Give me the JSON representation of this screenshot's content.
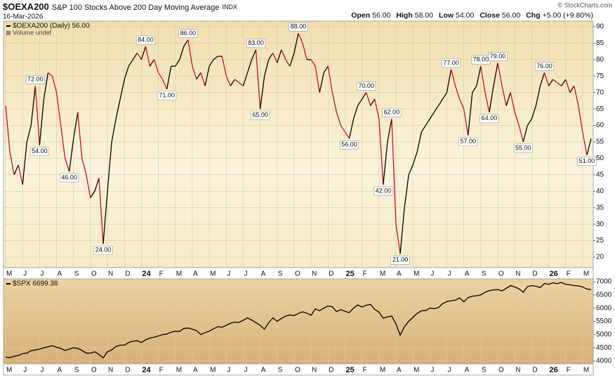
{
  "header": {
    "symbol": "$OEXA200",
    "title": "S&P 100 Stocks Above 200 Day Moving Average",
    "exchange": "INDX",
    "date": "16-Mar-2026",
    "quote": [
      {
        "label": "Open",
        "value": "56.00"
      },
      {
        "label": "High",
        "value": "58.00"
      },
      {
        "label": "Low",
        "value": "54.00"
      },
      {
        "label": "Close",
        "value": "56.00"
      },
      {
        "label": "Chg",
        "value": "+5.00 (+9.80%)"
      }
    ],
    "copyright": "© StockCharts.com"
  },
  "chart_data": [
    {
      "type": "line",
      "categories": [
        "M",
        null,
        null,
        null,
        "J",
        null,
        null,
        null,
        "J",
        null,
        null,
        null,
        "A",
        null,
        null,
        null,
        "S",
        null,
        null,
        null,
        "O",
        null,
        null,
        null,
        "N",
        null,
        null,
        null,
        "D",
        null,
        null,
        null,
        "24",
        null,
        null,
        null,
        "F",
        null,
        null,
        null,
        "M",
        null,
        null,
        null,
        "A",
        null,
        null,
        null,
        "M",
        null,
        null,
        null,
        "J",
        null,
        null,
        null,
        "J",
        null,
        null,
        null,
        "A",
        null,
        null,
        null,
        "S",
        null,
        null,
        null,
        "O",
        null,
        null,
        null,
        "N",
        null,
        null,
        null,
        "D",
        null,
        null,
        null,
        "25",
        null,
        null,
        null,
        "F",
        null,
        null,
        null,
        "M",
        null,
        null,
        null,
        "A",
        null,
        null,
        null,
        "M",
        null,
        null,
        null,
        "J",
        null,
        null,
        null,
        "J",
        null,
        null,
        null,
        "A",
        null,
        null,
        null,
        "S",
        null,
        null,
        null,
        "O",
        null,
        null,
        null,
        "N",
        null,
        null,
        null,
        "D",
        null,
        null,
        null,
        "26",
        null,
        null,
        null,
        "F",
        null,
        null,
        null,
        "M",
        null,
        null
      ],
      "series": [
        {
          "name": "$OEXA200 (Daily) 56.00",
          "up_color": "#000000",
          "down_color": "#c8102e",
          "values": [
            66,
            52,
            45,
            48,
            42,
            55,
            60,
            72,
            54,
            68,
            76,
            75,
            70,
            60,
            50,
            46,
            56,
            64,
            50,
            45,
            38,
            40,
            44,
            24,
            40,
            55,
            62,
            68,
            74,
            78,
            80,
            82,
            80,
            84,
            78,
            80,
            76,
            74,
            71,
            78,
            78,
            80,
            84,
            86,
            78,
            74,
            76,
            72,
            78,
            80,
            81,
            81,
            75,
            72,
            74,
            73,
            72,
            76,
            80,
            83,
            65,
            75,
            80,
            82,
            79,
            83,
            80,
            78,
            82,
            88,
            85,
            80,
            80,
            78,
            70,
            76,
            78,
            70,
            64,
            60,
            58,
            56,
            62,
            66,
            68,
            70,
            66,
            68,
            62,
            42,
            55,
            62,
            30,
            21,
            35,
            45,
            48,
            52,
            58,
            60,
            62,
            64,
            66,
            68,
            70,
            77,
            72,
            68,
            65,
            57,
            70,
            72,
            78,
            70,
            64,
            72,
            79,
            72,
            66,
            70,
            64,
            60,
            55,
            60,
            62,
            66,
            72,
            76,
            72,
            74,
            73,
            72,
            74,
            70,
            72,
            66,
            58,
            51,
            56
          ],
          "value_labels": [
            null,
            null,
            null,
            null,
            null,
            null,
            null,
            "72.00",
            "54.00",
            null,
            null,
            null,
            null,
            null,
            null,
            "46.00",
            null,
            null,
            null,
            null,
            null,
            null,
            null,
            "24.00",
            null,
            null,
            null,
            null,
            null,
            null,
            null,
            null,
            null,
            "84.00",
            null,
            null,
            null,
            null,
            "71.00",
            null,
            null,
            null,
            null,
            "86.00",
            null,
            null,
            null,
            null,
            null,
            null,
            null,
            null,
            null,
            null,
            null,
            null,
            null,
            null,
            null,
            "83.00",
            "65.00",
            null,
            null,
            null,
            null,
            null,
            null,
            null,
            null,
            "88.00",
            null,
            null,
            null,
            null,
            null,
            null,
            null,
            null,
            null,
            null,
            null,
            "56.00",
            null,
            null,
            null,
            "70.00",
            null,
            null,
            null,
            "42.00",
            null,
            "62.00",
            null,
            "21.00",
            null,
            null,
            null,
            null,
            null,
            null,
            null,
            null,
            null,
            null,
            null,
            "77.00",
            null,
            null,
            null,
            "57.00",
            null,
            null,
            "78.00",
            null,
            "64.00",
            null,
            "79.00",
            null,
            null,
            null,
            null,
            null,
            "55.00",
            null,
            null,
            null,
            null,
            "76.00",
            null,
            null,
            null,
            null,
            null,
            null,
            null,
            null,
            null,
            "51.00",
            null
          ]
        }
      ],
      "annotation": "Volume undef",
      "ylim": [
        16.8,
        91.7
      ],
      "yticks": [
        20,
        25,
        30,
        35,
        40,
        45,
        50,
        55,
        60,
        65,
        70,
        75,
        80,
        85,
        90
      ],
      "grid": true
    },
    {
      "type": "line",
      "categories": [
        "M",
        null,
        null,
        null,
        "J",
        null,
        null,
        null,
        "J",
        null,
        null,
        null,
        "A",
        null,
        null,
        null,
        "S",
        null,
        null,
        null,
        "O",
        null,
        null,
        null,
        "N",
        null,
        null,
        null,
        "D",
        null,
        null,
        null,
        "24",
        null,
        null,
        null,
        "F",
        null,
        null,
        null,
        "M",
        null,
        null,
        null,
        "A",
        null,
        null,
        null,
        "M",
        null,
        null,
        null,
        "J",
        null,
        null,
        null,
        "J",
        null,
        null,
        null,
        "A",
        null,
        null,
        null,
        "S",
        null,
        null,
        null,
        "O",
        null,
        null,
        null,
        "N",
        null,
        null,
        null,
        "D",
        null,
        null,
        null,
        "25",
        null,
        null,
        null,
        "F",
        null,
        null,
        null,
        "M",
        null,
        null,
        null,
        "A",
        null,
        null,
        null,
        "M",
        null,
        null,
        null,
        "J",
        null,
        null,
        null,
        "J",
        null,
        null,
        null,
        "A",
        null,
        null,
        null,
        "S",
        null,
        null,
        null,
        "O",
        null,
        null,
        null,
        "N",
        null,
        null,
        null,
        "D",
        null,
        null,
        null,
        "26",
        null,
        null,
        null,
        "F",
        null,
        null,
        null,
        "M",
        null,
        null
      ],
      "series": [
        {
          "name": "$SPX 6699.38",
          "color": "#000000",
          "values": [
            4150,
            4130,
            4180,
            4210,
            4280,
            4300,
            4390,
            4420,
            4450,
            4500,
            4540,
            4580,
            4520,
            4480,
            4400,
            4450,
            4500,
            4480,
            4400,
            4300,
            4300,
            4350,
            4250,
            4120,
            4350,
            4420,
            4550,
            4600,
            4600,
            4700,
            4750,
            4770,
            4700,
            4800,
            4870,
            4900,
            4950,
            5000,
            5020,
            5090,
            5130,
            5120,
            5230,
            5250,
            5200,
            5150,
            5000,
            5070,
            5130,
            5220,
            5300,
            5280,
            5350,
            5430,
            5470,
            5460,
            5540,
            5630,
            5550,
            5450,
            5350,
            5200,
            5450,
            5630,
            5500,
            5610,
            5700,
            5740,
            5720,
            5800,
            5860,
            5810,
            5730,
            5970,
            5900,
            6000,
            6080,
            6050,
            5870,
            5940,
            5880,
            5830,
            6000,
            6120,
            6040,
            6110,
            6140,
            5950,
            5850,
            5620,
            5670,
            5700,
            5400,
            4980,
            5300,
            5500,
            5650,
            5800,
            5900,
            5910,
            6000,
            5980,
            6020,
            6170,
            6250,
            6280,
            6300,
            6390,
            6240,
            6400,
            6450,
            6470,
            6500,
            6600,
            6660,
            6690,
            6700,
            6650,
            6750,
            6850,
            6800,
            6730,
            6600,
            6810,
            6850,
            6830,
            6780,
            6930,
            6900,
            6960,
            6920,
            6970,
            6900,
            6880,
            6850,
            6840,
            6800,
            6720,
            6699.38
          ]
        }
      ],
      "ylim": [
        3894,
        7106
      ],
      "yticks": [
        4000,
        4500,
        5000,
        5500,
        6000,
        6500,
        7000
      ],
      "grid": true
    }
  ]
}
